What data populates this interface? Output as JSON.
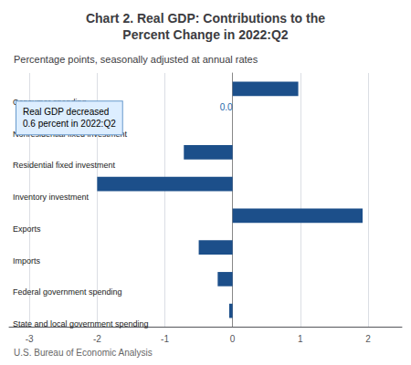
{
  "chart_data": {
    "type": "bar",
    "orientation": "horizontal",
    "title": "Chart 2. Real GDP: Contributions to the\nPercent Change in 2022:Q2",
    "subtitle": "Percentage points, seasonally adjusted at annual rates",
    "footer": "U.S. Bureau of Economic Analysis",
    "categories": [
      "Consumer spending",
      "Nonresidential fixed investment",
      "Residential fixed investment",
      "Inventory investment",
      "Exports",
      "Imports",
      "Federal government spending",
      "State and local government spending"
    ],
    "values": [
      0.97,
      0.0,
      -0.72,
      -2.0,
      1.92,
      -0.5,
      -0.22,
      -0.05
    ],
    "color": "#1c4f8a",
    "xlim": [
      -3.3,
      2.5
    ],
    "xticks": [
      -3,
      -2,
      -1,
      0,
      1,
      2
    ],
    "grid": true,
    "annotations": [
      {
        "text": "Real GDP decreased\n0.6 percent in 2022:Q2",
        "color": "#ddeeff"
      },
      {
        "text": "0.0",
        "category": "Nonresidential fixed investment",
        "color": "#2266aa"
      }
    ]
  }
}
